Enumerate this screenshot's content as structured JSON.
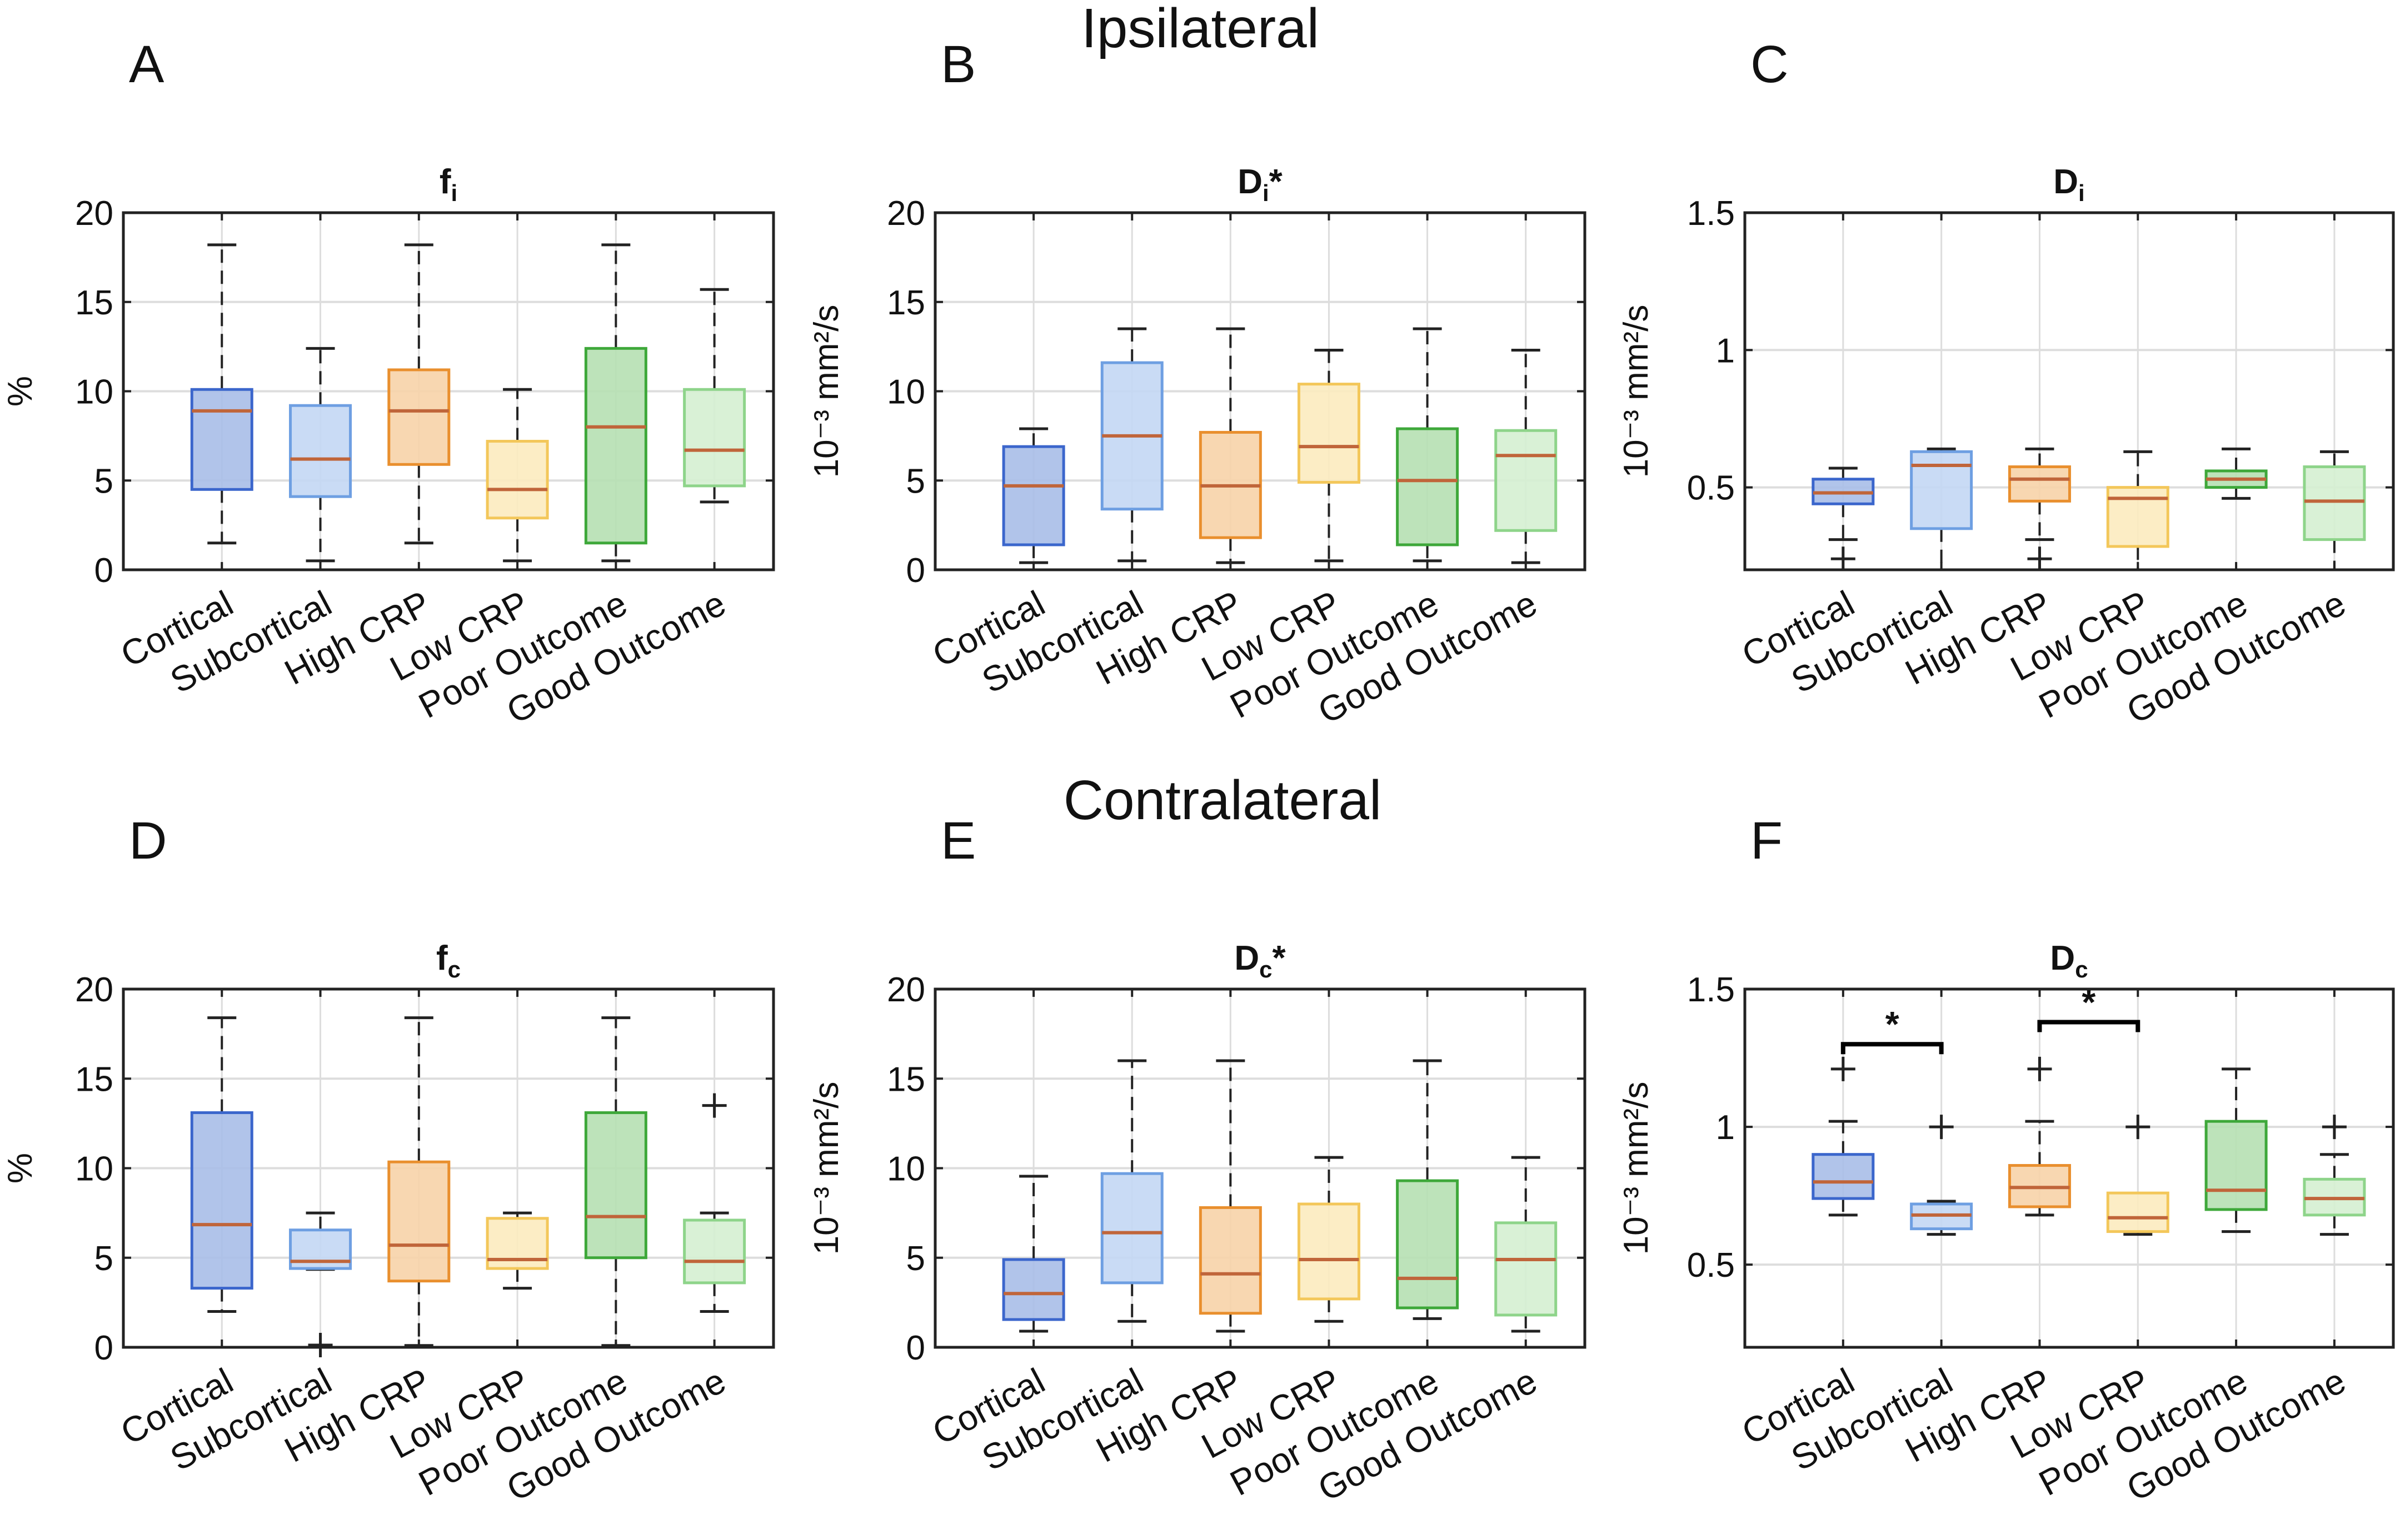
{
  "section_titles": {
    "top": "Ipsilateral",
    "bottom": "Contralateral"
  },
  "categories": [
    "Cortical",
    "Subcortical",
    "High CRP",
    "Low CRP",
    "Poor Outcome",
    "Good Outcome"
  ],
  "colors": {
    "fills": [
      "#a9bee8",
      "#c3d7f4",
      "#f7d3a8",
      "#fcebbf",
      "#b6e0b2",
      "#d5efd2"
    ],
    "edges": [
      "#3b66cc",
      "#6e9fe2",
      "#e98f2e",
      "#f3c75a",
      "#3ea83a",
      "#8ed48a"
    ],
    "median": "#c0653a",
    "whisker": "#222222",
    "grid": "#dddddd"
  },
  "chart_data": [
    {
      "type": "box",
      "panel_letter": "A",
      "title": {
        "base": "f",
        "sub": "i",
        "suffix": ""
      },
      "ylabel": "%",
      "ylim": [
        0,
        20
      ],
      "yticks": [
        "0",
        "5",
        "10",
        "15",
        "20"
      ],
      "grid": true,
      "boxes": [
        {
          "lower": 1.5,
          "q1": 4.5,
          "median": 8.9,
          "q3": 10.1,
          "upper": 18.2,
          "outliers": []
        },
        {
          "lower": 0.5,
          "q1": 4.1,
          "median": 6.2,
          "q3": 9.2,
          "upper": 12.4,
          "outliers": []
        },
        {
          "lower": 1.5,
          "q1": 5.9,
          "median": 8.9,
          "q3": 11.2,
          "upper": 18.2,
          "outliers": []
        },
        {
          "lower": 0.5,
          "q1": 2.9,
          "median": 4.5,
          "q3": 7.2,
          "upper": 10.1,
          "outliers": []
        },
        {
          "lower": 0.5,
          "q1": 1.5,
          "median": 8.0,
          "q3": 12.4,
          "upper": 18.2,
          "outliers": []
        },
        {
          "lower": 3.8,
          "q1": 4.7,
          "median": 6.7,
          "q3": 10.1,
          "upper": 15.7,
          "outliers": []
        }
      ],
      "significance": []
    },
    {
      "type": "box",
      "panel_letter": "B",
      "title": {
        "base": "D",
        "sub": "i",
        "suffix": "*"
      },
      "ylabel": "10⁻³ mm²/s",
      "ylim": [
        0,
        20
      ],
      "yticks": [
        "0",
        "5",
        "10",
        "15",
        "20"
      ],
      "grid": true,
      "boxes": [
        {
          "lower": 0.4,
          "q1": 1.4,
          "median": 4.7,
          "q3": 6.9,
          "upper": 7.9,
          "outliers": []
        },
        {
          "lower": 0.5,
          "q1": 3.4,
          "median": 7.5,
          "q3": 11.6,
          "upper": 13.5,
          "outliers": []
        },
        {
          "lower": 0.4,
          "q1": 1.8,
          "median": 4.7,
          "q3": 7.7,
          "upper": 13.5,
          "outliers": []
        },
        {
          "lower": 0.5,
          "q1": 4.9,
          "median": 6.9,
          "q3": 10.4,
          "upper": 12.3,
          "outliers": []
        },
        {
          "lower": 0.5,
          "q1": 1.4,
          "median": 5.0,
          "q3": 7.9,
          "upper": 13.5,
          "outliers": []
        },
        {
          "lower": 0.4,
          "q1": 2.2,
          "median": 6.4,
          "q3": 7.8,
          "upper": 12.3,
          "outliers": []
        }
      ],
      "significance": []
    },
    {
      "type": "box",
      "panel_letter": "C",
      "title": {
        "base": "D",
        "sub": "i",
        "suffix": ""
      },
      "ylabel": "10⁻³ mm²/s",
      "ylim": [
        0.2,
        1.5
      ],
      "yticks": [
        "0.5",
        "1",
        "1.5"
      ],
      "grid": true,
      "boxes": [
        {
          "lower": 0.31,
          "q1": 0.44,
          "median": 0.48,
          "q3": 0.53,
          "upper": 0.57,
          "outliers": [
            0.24
          ]
        },
        {
          "lower": 0.2,
          "q1": 0.35,
          "median": 0.58,
          "q3": 0.63,
          "upper": 0.64,
          "outliers": []
        },
        {
          "lower": 0.31,
          "q1": 0.45,
          "median": 0.53,
          "q3": 0.575,
          "upper": 0.64,
          "outliers": [
            0.24
          ]
        },
        {
          "lower": 0.2,
          "q1": 0.285,
          "median": 0.46,
          "q3": 0.5,
          "upper": 0.63,
          "outliers": []
        },
        {
          "lower": 0.46,
          "q1": 0.5,
          "median": 0.53,
          "q3": 0.56,
          "upper": 0.64,
          "outliers": []
        },
        {
          "lower": 0.2,
          "q1": 0.31,
          "median": 0.45,
          "q3": 0.575,
          "upper": 0.63,
          "outliers": []
        }
      ],
      "significance": []
    },
    {
      "type": "box",
      "panel_letter": "D",
      "title": {
        "base": "f",
        "sub": "c",
        "suffix": ""
      },
      "ylabel": "%",
      "ylim": [
        0,
        20
      ],
      "yticks": [
        "0",
        "5",
        "10",
        "15",
        "20"
      ],
      "grid": true,
      "boxes": [
        {
          "lower": 2.0,
          "q1": 3.3,
          "median": 6.85,
          "q3": 13.1,
          "upper": 18.4,
          "outliers": []
        },
        {
          "lower": 4.35,
          "q1": 4.4,
          "median": 4.8,
          "q3": 6.55,
          "upper": 7.5,
          "outliers": [
            0.05
          ]
        },
        {
          "lower": 0.1,
          "q1": 3.7,
          "median": 5.7,
          "q3": 10.35,
          "upper": 18.4,
          "outliers": []
        },
        {
          "lower": 3.3,
          "q1": 4.4,
          "median": 4.9,
          "q3": 7.2,
          "upper": 7.5,
          "outliers": []
        },
        {
          "lower": 0.1,
          "q1": 5.0,
          "median": 7.3,
          "q3": 13.1,
          "upper": 18.4,
          "outliers": []
        },
        {
          "lower": 2.0,
          "q1": 3.6,
          "median": 4.8,
          "q3": 7.1,
          "upper": 7.5,
          "outliers": [
            13.5
          ]
        }
      ],
      "significance": []
    },
    {
      "type": "box",
      "panel_letter": "E",
      "title": {
        "base": "D",
        "sub": "c",
        "suffix": "*"
      },
      "ylabel": "10⁻³ mm²/s",
      "ylim": [
        0,
        20
      ],
      "yticks": [
        "0",
        "5",
        "10",
        "15",
        "20"
      ],
      "grid": true,
      "boxes": [
        {
          "lower": 0.9,
          "q1": 1.55,
          "median": 3.0,
          "q3": 4.9,
          "upper": 9.55,
          "outliers": []
        },
        {
          "lower": 1.45,
          "q1": 3.6,
          "median": 6.4,
          "q3": 9.7,
          "upper": 16.0,
          "outliers": []
        },
        {
          "lower": 0.9,
          "q1": 1.9,
          "median": 4.1,
          "q3": 7.8,
          "upper": 16.0,
          "outliers": []
        },
        {
          "lower": 1.45,
          "q1": 2.7,
          "median": 4.9,
          "q3": 8.0,
          "upper": 10.6,
          "outliers": []
        },
        {
          "lower": 1.6,
          "q1": 2.2,
          "median": 3.85,
          "q3": 9.3,
          "upper": 16.0,
          "outliers": []
        },
        {
          "lower": 0.9,
          "q1": 1.8,
          "median": 4.9,
          "q3": 6.95,
          "upper": 10.6,
          "outliers": []
        }
      ],
      "significance": []
    },
    {
      "type": "box",
      "panel_letter": "F",
      "title": {
        "base": "D",
        "sub": "c",
        "suffix": ""
      },
      "ylabel": "10⁻³ mm²/s",
      "ylim": [
        0.2,
        1.5
      ],
      "yticks": [
        "0.5",
        "1",
        "1.5"
      ],
      "grid": true,
      "boxes": [
        {
          "lower": 0.68,
          "q1": 0.74,
          "median": 0.8,
          "q3": 0.9,
          "upper": 1.02,
          "outliers": [
            1.21
          ]
        },
        {
          "lower": 0.61,
          "q1": 0.63,
          "median": 0.68,
          "q3": 0.72,
          "upper": 0.73,
          "outliers": [
            1.0
          ]
        },
        {
          "lower": 0.68,
          "q1": 0.71,
          "median": 0.78,
          "q3": 0.86,
          "upper": 1.02,
          "outliers": [
            1.21
          ]
        },
        {
          "lower": 0.61,
          "q1": 0.62,
          "median": 0.67,
          "q3": 0.76,
          "upper": 0.76,
          "outliers": [
            1.0
          ]
        },
        {
          "lower": 0.62,
          "q1": 0.7,
          "median": 0.77,
          "q3": 1.02,
          "upper": 1.21,
          "outliers": []
        },
        {
          "lower": 0.61,
          "q1": 0.68,
          "median": 0.74,
          "q3": 0.81,
          "upper": 0.9,
          "outliers": [
            1.0
          ]
        }
      ],
      "significance": [
        {
          "from": "Cortical",
          "to": "Subcortical",
          "y": 1.3,
          "label": "*"
        },
        {
          "from": "High CRP",
          "to": "Low CRP",
          "y": 1.38,
          "label": "*"
        }
      ]
    }
  ]
}
